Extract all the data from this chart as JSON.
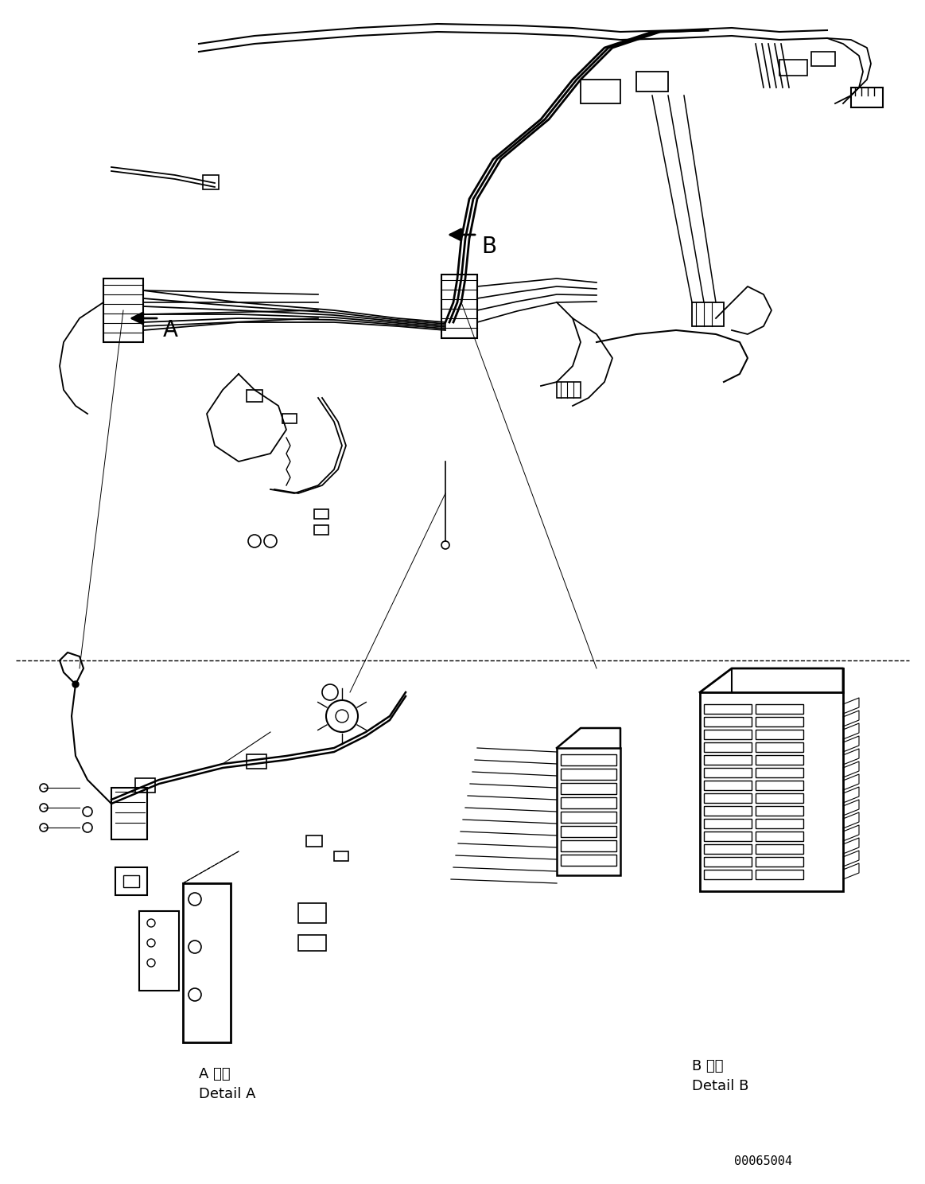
{
  "title": "",
  "part_number": "00065004",
  "background_color": "#ffffff",
  "line_color": "#000000",
  "label_A": "A",
  "label_B": "B",
  "detail_A_jp": "A 詳細",
  "detail_A_en": "Detail A",
  "detail_B_jp": "B 詳細",
  "detail_B_en": "Detail B",
  "fig_width": 11.63,
  "fig_height": 14.88,
  "dpi": 100
}
